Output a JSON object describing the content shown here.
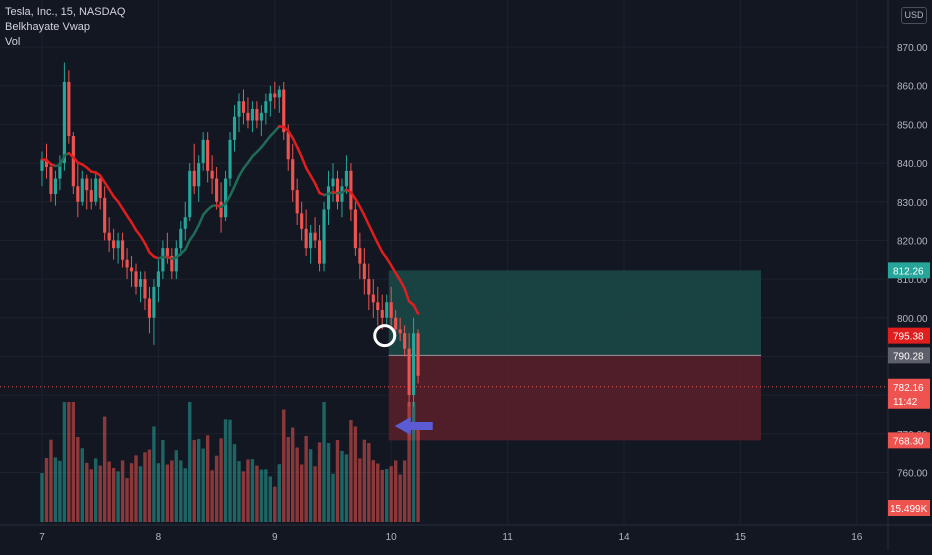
{
  "legend": {
    "symbol": "Tesla, Inc., 15, NASDAQ",
    "indicator": "Belkhayate Vwap",
    "volume": "Vol"
  },
  "currency_button": "USD",
  "colors": {
    "background": "#131722",
    "grid": "#1e222d",
    "bull": "#26a69a",
    "bear": "#ef5350",
    "vwap_up": "#1f6b57",
    "vwap_down": "#e01e1e",
    "target_zone": "#1b4a48",
    "stop_zone": "#5c2029",
    "arrow": "#5b5bd6",
    "circle": "#ffffff"
  },
  "chart_data": {
    "type": "candlestick",
    "symbol": "Tesla, Inc.",
    "interval": "15",
    "exchange": "NASDAQ",
    "price_axis": {
      "ticks": [
        "870.00",
        "860.00",
        "850.00",
        "840.00",
        "830.00",
        "820.00",
        "810.00",
        "800.00",
        "790.00",
        "780.00",
        "770.00",
        "760.00"
      ],
      "range": [
        749,
        877
      ]
    },
    "time_axis": {
      "ticks": [
        "7",
        "8",
        "9",
        "10",
        "11",
        "14",
        "15",
        "16"
      ],
      "positions_in_bars": [
        0,
        26,
        52,
        78,
        104,
        130,
        156,
        182
      ]
    },
    "candles": [
      [
        838,
        843,
        834,
        841
      ],
      [
        841,
        845,
        836,
        839
      ],
      [
        839,
        840,
        830,
        832
      ],
      [
        832,
        838,
        829,
        836
      ],
      [
        836,
        842,
        833,
        840
      ],
      [
        840,
        866,
        838,
        861
      ],
      [
        861,
        864,
        845,
        847
      ],
      [
        847,
        848,
        832,
        834
      ],
      [
        834,
        840,
        826,
        830
      ],
      [
        830,
        838,
        829,
        836
      ],
      [
        836,
        837,
        828,
        833
      ],
      [
        833,
        836,
        828,
        830
      ],
      [
        830,
        838,
        829,
        836
      ],
      [
        836,
        837,
        828,
        831
      ],
      [
        831,
        834,
        820,
        822
      ],
      [
        822,
        826,
        817,
        820
      ],
      [
        820,
        823,
        815,
        818
      ],
      [
        818,
        822,
        814,
        820
      ],
      [
        820,
        822,
        813,
        815
      ],
      [
        815,
        818,
        810,
        813
      ],
      [
        813,
        816,
        808,
        812
      ],
      [
        812,
        814,
        806,
        808
      ],
      [
        808,
        812,
        804,
        810
      ],
      [
        810,
        812,
        802,
        805
      ],
      [
        805,
        808,
        796,
        800
      ],
      [
        800,
        810,
        793,
        808
      ],
      [
        808,
        815,
        804,
        812
      ],
      [
        812,
        820,
        810,
        818
      ],
      [
        818,
        822,
        814,
        816
      ],
      [
        816,
        818,
        810,
        812
      ],
      [
        812,
        820,
        810,
        818
      ],
      [
        818,
        825,
        816,
        823
      ],
      [
        823,
        830,
        820,
        826
      ],
      [
        826,
        840,
        825,
        838
      ],
      [
        838,
        845,
        832,
        834
      ],
      [
        834,
        842,
        830,
        840
      ],
      [
        840,
        848,
        838,
        846
      ],
      [
        846,
        848,
        835,
        838
      ],
      [
        838,
        842,
        832,
        836
      ],
      [
        836,
        839,
        828,
        830
      ],
      [
        830,
        835,
        822,
        826
      ],
      [
        826,
        838,
        825,
        836
      ],
      [
        836,
        848,
        834,
        846
      ],
      [
        846,
        855,
        843,
        852
      ],
      [
        852,
        858,
        848,
        856
      ],
      [
        856,
        859,
        850,
        853
      ],
      [
        853,
        857,
        849,
        851
      ],
      [
        851,
        856,
        848,
        854
      ],
      [
        854,
        856,
        849,
        851
      ],
      [
        851,
        855,
        847,
        853
      ],
      [
        853,
        858,
        850,
        856
      ],
      [
        856,
        860,
        852,
        858
      ],
      [
        858,
        861,
        854,
        857
      ],
      [
        857,
        860,
        853,
        859
      ],
      [
        859,
        861,
        846,
        848
      ],
      [
        848,
        850,
        838,
        841
      ],
      [
        841,
        845,
        830,
        833
      ],
      [
        833,
        836,
        824,
        827
      ],
      [
        827,
        830,
        820,
        823
      ],
      [
        823,
        828,
        816,
        818
      ],
      [
        818,
        824,
        814,
        822
      ],
      [
        822,
        826,
        818,
        820
      ],
      [
        820,
        824,
        812,
        814
      ],
      [
        814,
        830,
        812,
        828
      ],
      [
        828,
        838,
        824,
        834
      ],
      [
        834,
        840,
        830,
        836
      ],
      [
        836,
        838,
        828,
        830
      ],
      [
        830,
        836,
        826,
        834
      ],
      [
        834,
        842,
        832,
        838
      ],
      [
        838,
        840,
        825,
        828
      ],
      [
        828,
        830,
        816,
        818
      ],
      [
        818,
        822,
        810,
        814
      ],
      [
        814,
        818,
        806,
        810
      ],
      [
        810,
        814,
        802,
        806
      ],
      [
        806,
        810,
        800,
        804
      ],
      [
        804,
        808,
        798,
        802
      ],
      [
        802,
        806,
        797,
        800
      ],
      [
        800,
        806,
        798,
        804
      ],
      [
        804,
        808,
        798,
        800
      ],
      [
        800,
        802,
        795,
        797
      ],
      [
        797,
        800,
        794,
        796
      ],
      [
        796,
        798,
        790,
        792
      ],
      [
        792,
        796,
        777,
        780
      ],
      [
        780,
        800,
        777,
        796
      ],
      [
        796,
        797,
        783,
        785
      ]
    ],
    "volume_label": "15.499K",
    "vwap_color_changes": "green below price, red above price",
    "price_labels": [
      {
        "value": "812.26",
        "color": "#26a69a"
      },
      {
        "value": "795.38",
        "color": "#e01e1e"
      },
      {
        "value": "790.28",
        "color": "#5d606b"
      },
      {
        "value": "782.16",
        "color": "#ef5350"
      },
      {
        "value": "11:42",
        "color": "#ef5350"
      },
      {
        "value": "768.30",
        "color": "#ef5350"
      }
    ],
    "position_tool": {
      "target": 812.26,
      "entry": 790.28,
      "stop": 768.3
    },
    "current_price": 782.16,
    "marker_circle_price": 795.38
  }
}
